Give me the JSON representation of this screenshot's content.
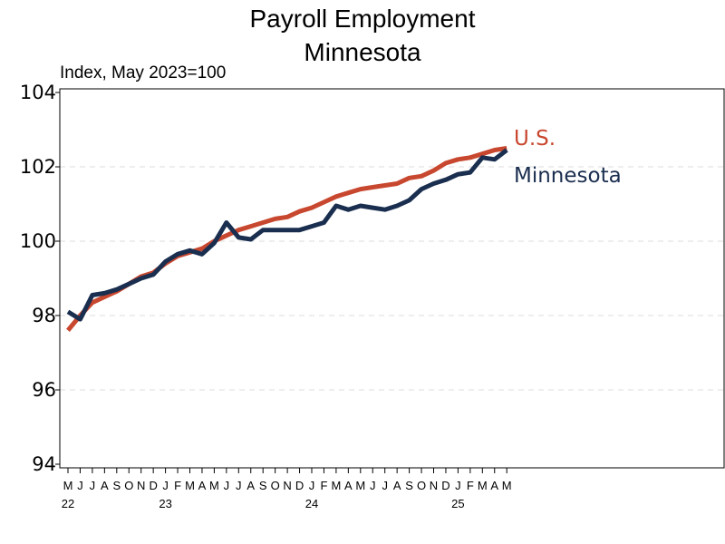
{
  "chart_data": {
    "type": "line",
    "title": [
      "Payroll Employment",
      "Minnesota"
    ],
    "subtitle": "Index, May 2023=100",
    "xlabel": "",
    "ylabel": "",
    "ylim": [
      94,
      104
    ],
    "yticks": [
      94,
      96,
      98,
      100,
      102,
      104
    ],
    "grid": "horizontal dashed",
    "month_labels": [
      "M",
      "J",
      "J",
      "A",
      "S",
      "O",
      "N",
      "D",
      "J",
      "F",
      "M",
      "A",
      "M",
      "J",
      "J",
      "A",
      "S",
      "O",
      "N",
      "D",
      "J",
      "F",
      "M",
      "A",
      "M",
      "J",
      "J",
      "A",
      "S",
      "O",
      "N",
      "D",
      "J",
      "F",
      "M",
      "A",
      "M"
    ],
    "year_labels": [
      {
        "label": "22",
        "month_index": 0
      },
      {
        "label": "23",
        "month_index": 8
      },
      {
        "label": "24",
        "month_index": 20
      },
      {
        "label": "25",
        "month_index": 32
      }
    ],
    "x_first_month": "May 2022",
    "series": [
      {
        "name": "U.S.",
        "color": "#c8472f",
        "values": [
          97.6,
          98.0,
          98.35,
          98.5,
          98.65,
          98.85,
          99.05,
          99.15,
          99.4,
          99.6,
          99.7,
          99.8,
          100.0,
          100.15,
          100.3,
          100.4,
          100.5,
          100.6,
          100.65,
          100.8,
          100.9,
          101.05,
          101.2,
          101.3,
          101.4,
          101.45,
          101.5,
          101.55,
          101.7,
          101.75,
          101.9,
          102.1,
          102.2,
          102.25,
          102.35,
          102.45,
          102.5
        ]
      },
      {
        "name": "Minnesota",
        "color": "#1a2e4f",
        "values": [
          98.1,
          97.9,
          98.55,
          98.6,
          98.7,
          98.85,
          99.0,
          99.1,
          99.45,
          99.65,
          99.75,
          99.65,
          99.95,
          100.5,
          100.1,
          100.05,
          100.3,
          100.3,
          100.3,
          100.3,
          100.4,
          100.5,
          100.95,
          100.85,
          100.95,
          100.9,
          100.85,
          100.95,
          101.1,
          101.4,
          101.55,
          101.65,
          101.8,
          101.85,
          102.25,
          102.2,
          102.45
        ]
      }
    ]
  }
}
